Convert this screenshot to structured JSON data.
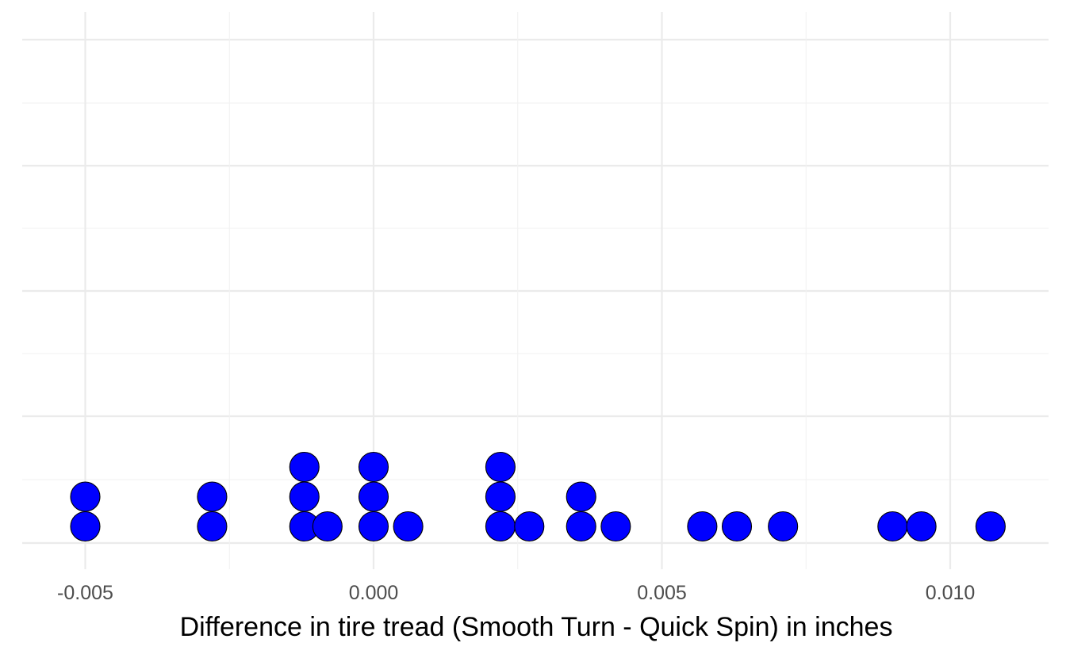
{
  "chart_data": {
    "type": "dotplot",
    "title": "",
    "xlabel": "Difference in tire tread (Smooth Turn - Quick Spin) in inches",
    "ylabel": "",
    "xlim": [
      -0.0061,
      0.0117
    ],
    "x_ticks": [
      -0.005,
      0.0,
      0.005,
      0.01
    ],
    "x_tick_labels": [
      "-0.005",
      "0.000",
      "0.005",
      "0.010"
    ],
    "y_tick_labels_shown": false,
    "grid": true,
    "dot_color": "#0000ff",
    "dot_outline": "#000000",
    "stacks": [
      {
        "x": -0.005,
        "count": 2
      },
      {
        "x": -0.0028,
        "count": 2
      },
      {
        "x": -0.0012,
        "count": 3
      },
      {
        "x": -0.0008,
        "count": 1
      },
      {
        "x": 0.0,
        "count": 3
      },
      {
        "x": 0.0006,
        "count": 1
      },
      {
        "x": 0.0022,
        "count": 3
      },
      {
        "x": 0.0027,
        "count": 1
      },
      {
        "x": 0.0036,
        "count": 2
      },
      {
        "x": 0.0042,
        "count": 1
      },
      {
        "x": 0.0057,
        "count": 1
      },
      {
        "x": 0.0063,
        "count": 1
      },
      {
        "x": 0.0071,
        "count": 1
      },
      {
        "x": 0.009,
        "count": 1
      },
      {
        "x": 0.0095,
        "count": 1
      },
      {
        "x": 0.0107,
        "count": 1
      }
    ]
  }
}
